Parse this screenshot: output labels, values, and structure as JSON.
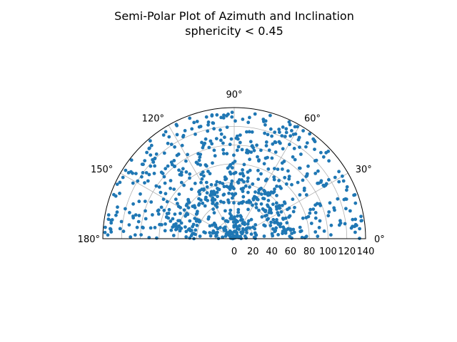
{
  "chart_data": {
    "type": "scatter",
    "projection": "polar",
    "title_line1": "Semi-Polar Plot of Azimuth and Inclination",
    "title_line2": "sphericity < 0.45",
    "theta_range_deg": [
      0,
      180
    ],
    "r_range": [
      0,
      140
    ],
    "theta_ticks": [
      "0°",
      "30°",
      "60°",
      "90°",
      "120°",
      "150°",
      "180°"
    ],
    "r_ticks": [
      "0",
      "20",
      "40",
      "60",
      "80",
      "100",
      "120",
      "140"
    ],
    "grid": true,
    "marker_color": "#1f77b4",
    "point_count": 850,
    "description": "Scattered points (theta = azimuth in degrees, r = inclination) filling the upper half-disc; denser cluster near r 40-60 around 80-100 degrees and near the center."
  }
}
